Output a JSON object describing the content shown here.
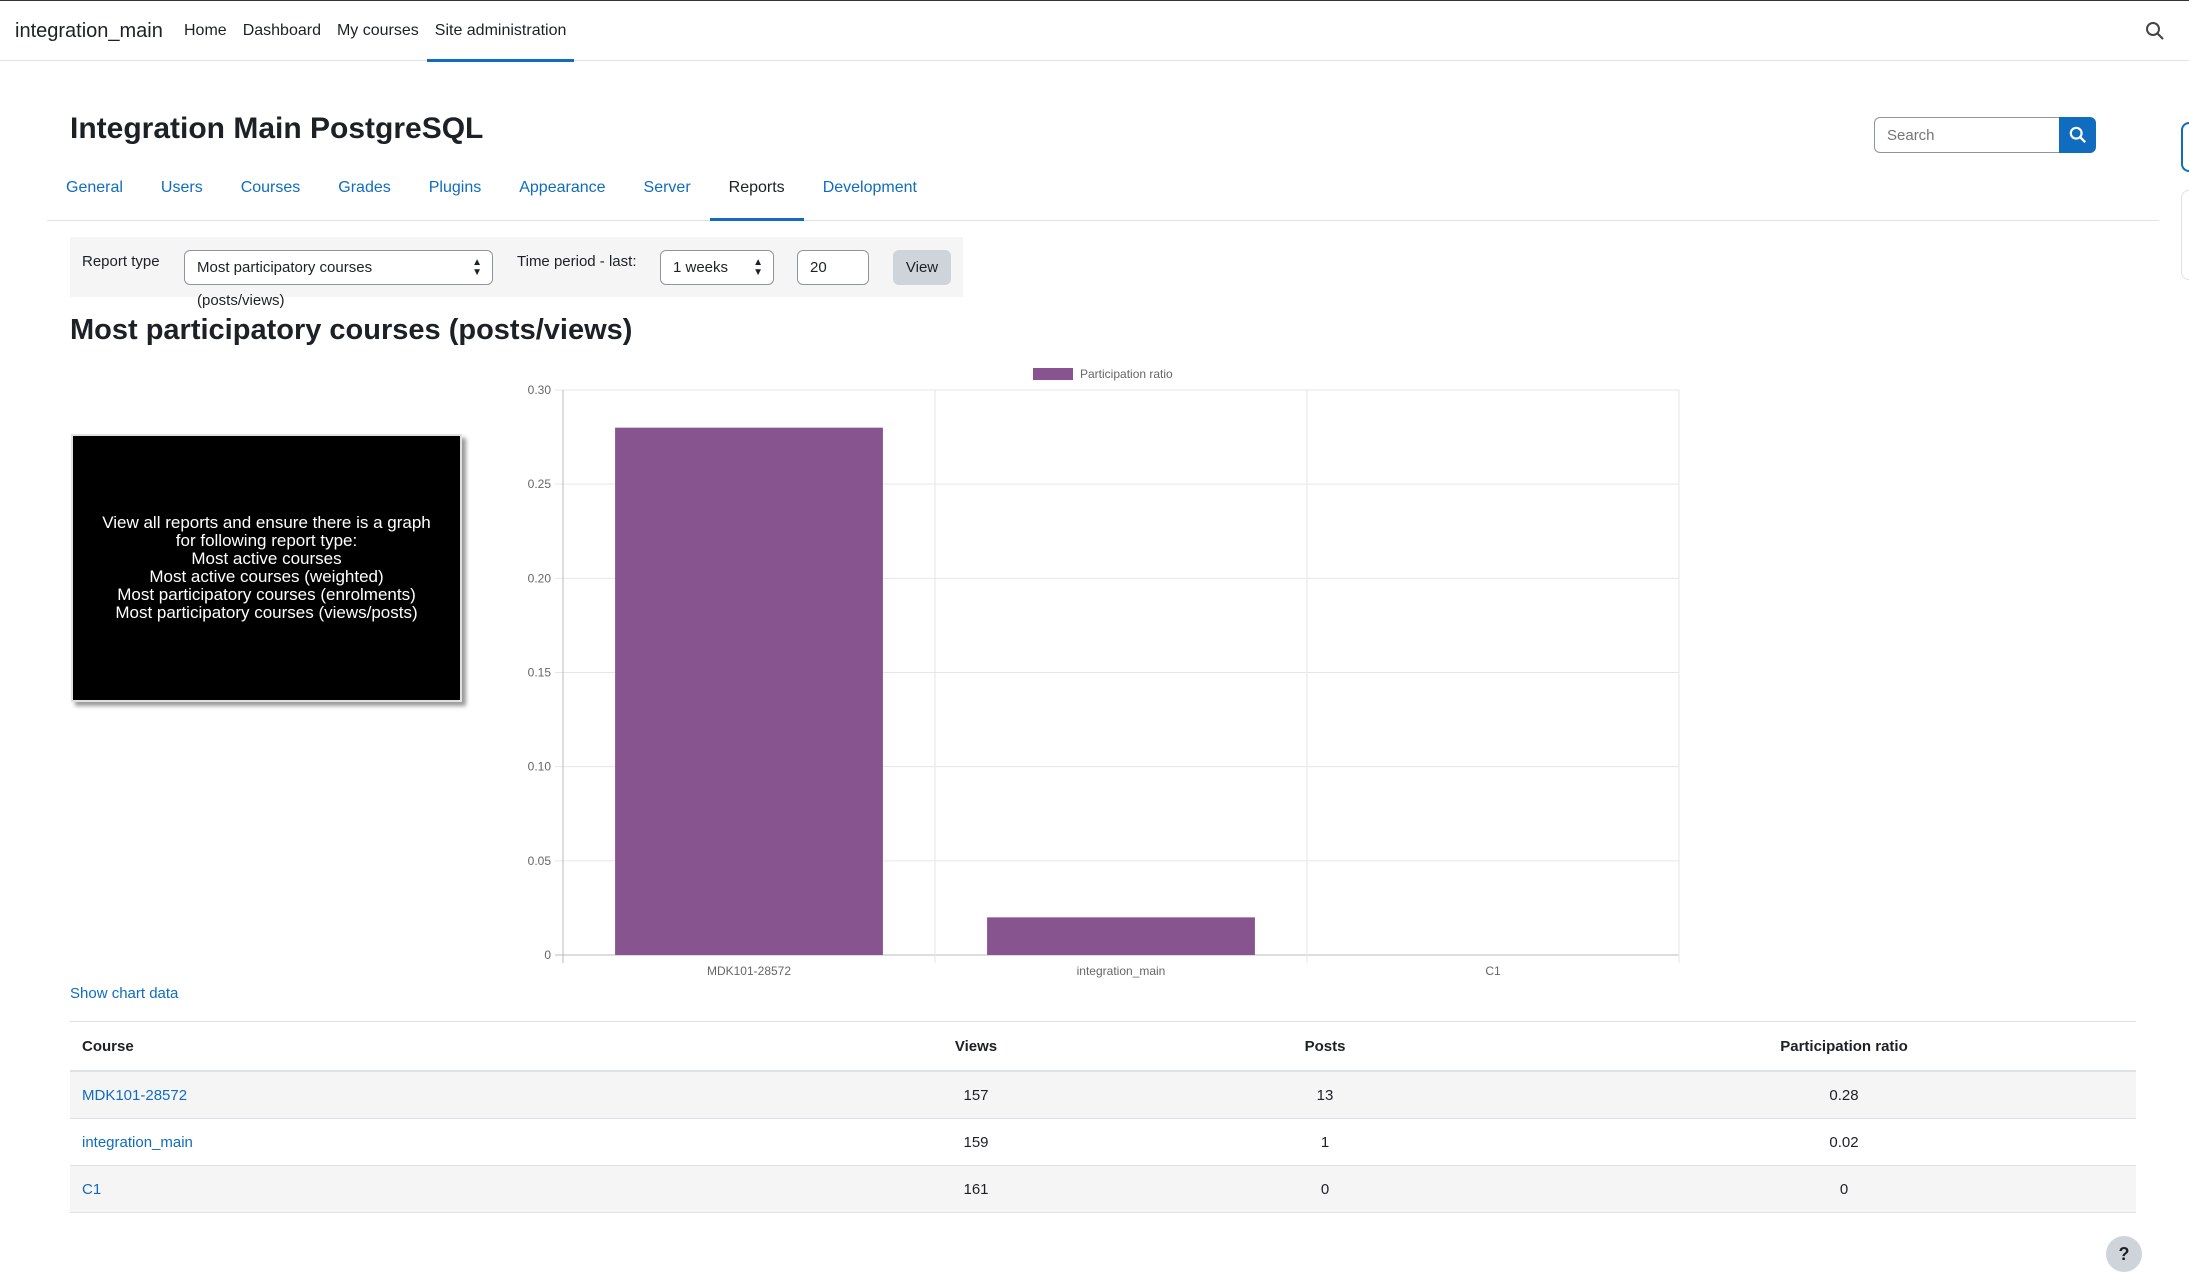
{
  "navbar": {
    "brand": "integration_main",
    "items": [
      "Home",
      "Dashboard",
      "My courses",
      "Site administration"
    ],
    "active_index": 3
  },
  "header": {
    "title": "Integration Main PostgreSQL",
    "search_placeholder": "Search"
  },
  "tabs": {
    "items": [
      "General",
      "Users",
      "Courses",
      "Grades",
      "Plugins",
      "Appearance",
      "Server",
      "Reports",
      "Development"
    ],
    "active_index": 7
  },
  "form": {
    "report_type_label": "Report type",
    "report_type_value": "Most participatory courses (posts/views)",
    "time_period_label": "Time period - last:",
    "time_period_value": "1 weeks",
    "count_value": "20",
    "view_button": "View"
  },
  "report": {
    "heading": "Most participatory courses (posts/views)",
    "image_text": [
      "View all reports and ensure there is a graph for following report type:",
      "Most active courses",
      "Most active courses (weighted)",
      "Most participatory courses (enrolments)",
      "Most participatory courses (views/posts)"
    ],
    "show_chart_data": "Show chart data"
  },
  "chart_data": {
    "type": "bar",
    "categories": [
      "MDK101-28572",
      "integration_main",
      "C1"
    ],
    "series": [
      {
        "name": "Participation ratio",
        "values": [
          0.28,
          0.02,
          0
        ],
        "color": "#88548f"
      }
    ],
    "ylim": [
      0,
      0.3
    ],
    "yticks": [
      "0",
      "0.05",
      "0.10",
      "0.15",
      "0.20",
      "0.25",
      "0.30"
    ],
    "grid": true,
    "legend": "top"
  },
  "table": {
    "headers": [
      "Course",
      "Views",
      "Posts",
      "Participation ratio"
    ],
    "rows": [
      [
        "MDK101-28572",
        "157",
        "13",
        "0.28"
      ],
      [
        "integration_main",
        "159",
        "1",
        "0.02"
      ],
      [
        "C1",
        "161",
        "0",
        "0"
      ]
    ]
  },
  "help_label": "?"
}
